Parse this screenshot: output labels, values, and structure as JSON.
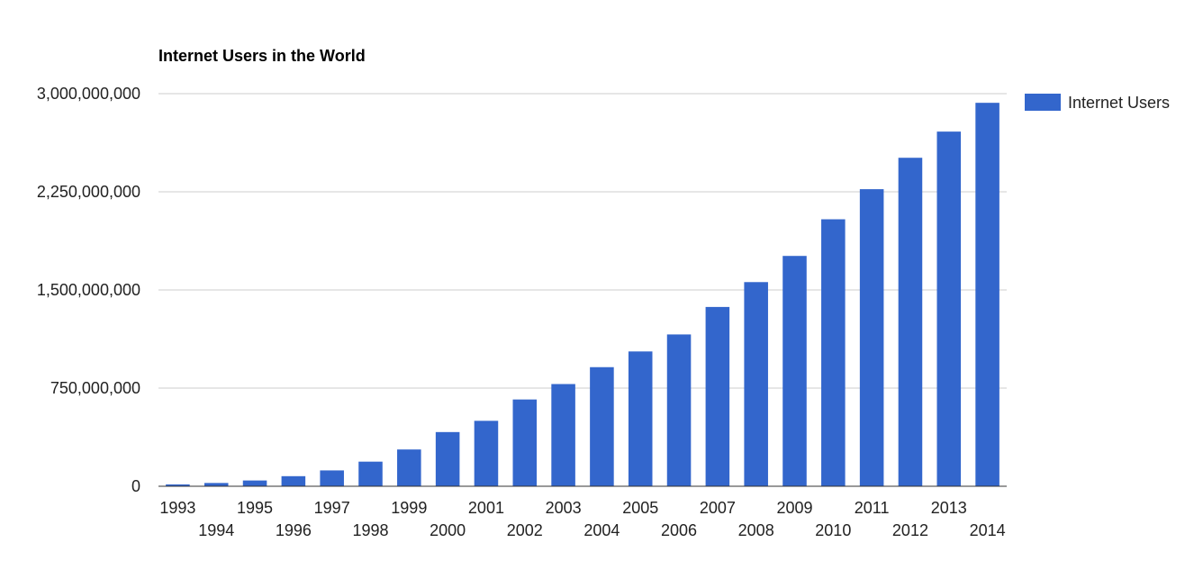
{
  "chart_data": {
    "type": "bar",
    "title": "Internet Users in the World",
    "xlabel": "",
    "ylabel": "",
    "categories": [
      "1993",
      "1994",
      "1995",
      "1996",
      "1997",
      "1998",
      "1999",
      "2000",
      "2001",
      "2002",
      "2003",
      "2004",
      "2005",
      "2006",
      "2007",
      "2008",
      "2009",
      "2010",
      "2011",
      "2012",
      "2013",
      "2014"
    ],
    "series": [
      {
        "name": "Internet Users",
        "color": "#3366CC",
        "values": [
          14000000,
          25000000,
          44000000,
          77000000,
          121000000,
          188000000,
          281000000,
          414000000,
          500000000,
          663000000,
          781000000,
          910000000,
          1030000000,
          1160000000,
          1370000000,
          1560000000,
          1760000000,
          2040000000,
          2270000000,
          2510000000,
          2710000000,
          2930000000
        ]
      }
    ],
    "ylim": [
      0,
      3000000000
    ],
    "yticks": [
      0,
      750000000,
      1500000000,
      2250000000,
      3000000000
    ],
    "ytick_labels": [
      "0",
      "750,000,000",
      "1,500,000,000",
      "2,250,000,000",
      "3,000,000,000"
    ],
    "grid": true,
    "legend_position": "right"
  }
}
